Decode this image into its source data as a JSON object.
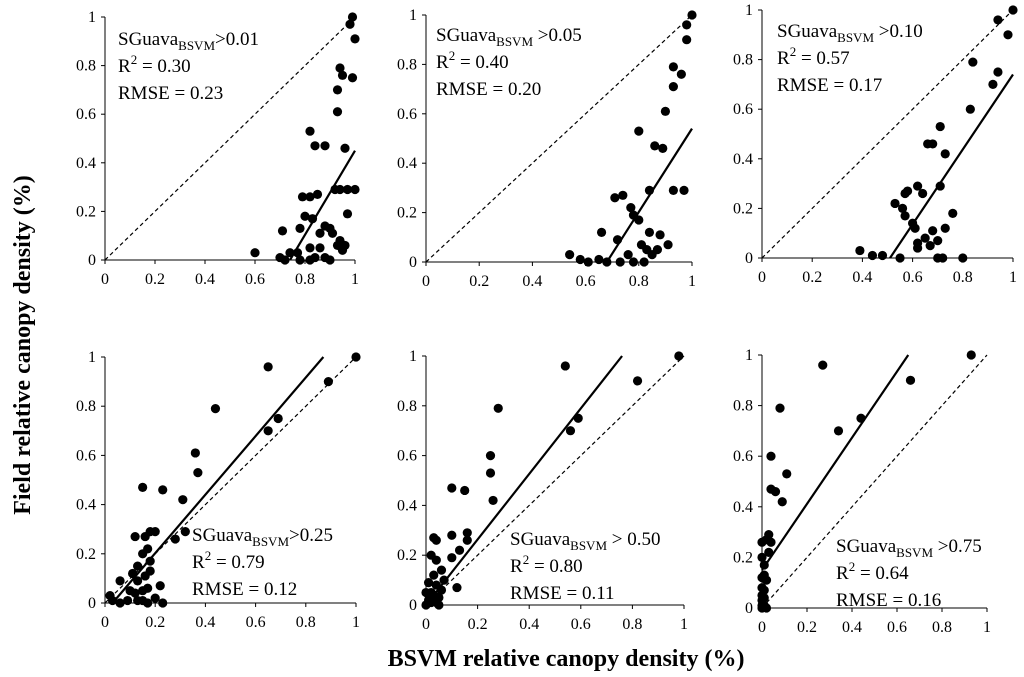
{
  "figure": {
    "ylabel": "Field relative canopy density (%)",
    "xlabel": "BSVM relative canopy density (%)"
  },
  "chart_data": [
    {
      "type": "scatter",
      "panel": "top-left",
      "xlim": [
        0,
        1
      ],
      "ylim": [
        0,
        1
      ],
      "xticks": [
        "0",
        "0.2",
        "0.4",
        "0.6",
        "0.8",
        "1"
      ],
      "yticks": [
        "0",
        "0.2",
        "0.4",
        "0.6",
        "0.8",
        "1"
      ],
      "annotation": {
        "name": "SGuava",
        "sub": "BSVM",
        "threshold": ">0.01",
        "r2_label": "R",
        "r2_exp": "2",
        "r2_value": " = 0.30",
        "rmse": "RMSE = 0.23"
      },
      "fit_line": {
        "x": [
          0.74,
          1.0
        ],
        "y": [
          0.0,
          0.45
        ]
      },
      "points": [
        [
          0.99,
          1.0
        ],
        [
          0.98,
          0.97
        ],
        [
          1.0,
          0.91
        ],
        [
          0.94,
          0.79
        ],
        [
          0.95,
          0.76
        ],
        [
          0.99,
          0.75
        ],
        [
          0.93,
          0.7
        ],
        [
          0.93,
          0.61
        ],
        [
          0.82,
          0.53
        ],
        [
          0.84,
          0.47
        ],
        [
          0.88,
          0.47
        ],
        [
          0.96,
          0.46
        ],
        [
          0.97,
          0.29
        ],
        [
          0.94,
          0.29
        ],
        [
          0.92,
          0.29
        ],
        [
          1.0,
          0.29
        ],
        [
          0.85,
          0.27
        ],
        [
          0.82,
          0.26
        ],
        [
          0.79,
          0.26
        ],
        [
          0.97,
          0.19
        ],
        [
          0.8,
          0.18
        ],
        [
          0.83,
          0.17
        ],
        [
          0.78,
          0.13
        ],
        [
          0.71,
          0.12
        ],
        [
          0.88,
          0.14
        ],
        [
          0.9,
          0.13
        ],
        [
          0.86,
          0.11
        ],
        [
          0.91,
          0.11
        ],
        [
          0.94,
          0.08
        ],
        [
          0.93,
          0.06
        ],
        [
          0.96,
          0.06
        ],
        [
          0.82,
          0.05
        ],
        [
          0.86,
          0.05
        ],
        [
          0.95,
          0.04
        ],
        [
          0.6,
          0.03
        ],
        [
          0.74,
          0.03
        ],
        [
          0.77,
          0.03
        ],
        [
          0.88,
          0.01
        ],
        [
          0.84,
          0.01
        ],
        [
          0.7,
          0.01
        ],
        [
          0.72,
          0.0
        ],
        [
          0.78,
          0.0
        ],
        [
          0.82,
          0.0
        ],
        [
          0.9,
          0.0
        ]
      ]
    },
    {
      "type": "scatter",
      "panel": "top-middle",
      "xlim": [
        0,
        1
      ],
      "ylim": [
        0,
        1
      ],
      "xticks": [
        "0",
        "0.2",
        "0.4",
        "0.6",
        "0.8",
        "1"
      ],
      "yticks": [
        "0",
        "0.2",
        "0.4",
        "0.6",
        "0.8",
        "1"
      ],
      "annotation": {
        "name": "SGuava",
        "sub": "BSVM",
        "threshold": " >0.05",
        "r2_label": "R",
        "r2_exp": "2",
        "r2_value": " = 0.40",
        "rmse": "RMSE = 0.20"
      },
      "fit_line": {
        "x": [
          0.68,
          1.0
        ],
        "y": [
          0.0,
          0.54
        ]
      },
      "points": [
        [
          1.0,
          1.0
        ],
        [
          0.98,
          0.96
        ],
        [
          0.98,
          0.9
        ],
        [
          0.93,
          0.79
        ],
        [
          0.96,
          0.76
        ],
        [
          0.93,
          0.71
        ],
        [
          0.9,
          0.61
        ],
        [
          0.8,
          0.53
        ],
        [
          0.86,
          0.47
        ],
        [
          0.89,
          0.46
        ],
        [
          0.97,
          0.29
        ],
        [
          0.93,
          0.29
        ],
        [
          0.84,
          0.29
        ],
        [
          0.74,
          0.27
        ],
        [
          0.71,
          0.26
        ],
        [
          0.77,
          0.22
        ],
        [
          0.78,
          0.19
        ],
        [
          0.8,
          0.17
        ],
        [
          0.66,
          0.12
        ],
        [
          0.84,
          0.12
        ],
        [
          0.88,
          0.11
        ],
        [
          0.72,
          0.09
        ],
        [
          0.81,
          0.07
        ],
        [
          0.91,
          0.07
        ],
        [
          0.87,
          0.05
        ],
        [
          0.83,
          0.05
        ],
        [
          0.85,
          0.03
        ],
        [
          0.54,
          0.03
        ],
        [
          0.76,
          0.03
        ],
        [
          0.58,
          0.01
        ],
        [
          0.65,
          0.01
        ],
        [
          0.68,
          0.0
        ],
        [
          0.61,
          0.0
        ],
        [
          0.73,
          0.0
        ],
        [
          0.78,
          0.0
        ],
        [
          0.82,
          0.0
        ]
      ]
    },
    {
      "type": "scatter",
      "panel": "top-right",
      "xlim": [
        0,
        1
      ],
      "ylim": [
        0,
        1
      ],
      "xticks": [
        "0",
        "0.2",
        "0.4",
        "0.6",
        "0.8",
        "1"
      ],
      "yticks": [
        "0",
        "0.2",
        "0.4",
        "0.6",
        "0.8",
        "1"
      ],
      "annotation": {
        "name": "SGuava",
        "sub": "BSVM",
        "threshold": " >0.10",
        "r2_label": "R",
        "r2_exp": "2",
        "r2_value": " = 0.57",
        "rmse": "RMSE = 0.17"
      },
      "fit_line": {
        "x": [
          0.51,
          1.0
        ],
        "y": [
          0.0,
          0.74
        ]
      },
      "points": [
        [
          1.0,
          1.0
        ],
        [
          0.94,
          0.96
        ],
        [
          0.98,
          0.9
        ],
        [
          0.84,
          0.79
        ],
        [
          0.94,
          0.75
        ],
        [
          0.92,
          0.7
        ],
        [
          0.83,
          0.6
        ],
        [
          0.71,
          0.53
        ],
        [
          0.66,
          0.46
        ],
        [
          0.68,
          0.46
        ],
        [
          0.73,
          0.42
        ],
        [
          0.71,
          0.29
        ],
        [
          0.62,
          0.29
        ],
        [
          0.58,
          0.27
        ],
        [
          0.57,
          0.26
        ],
        [
          0.64,
          0.26
        ],
        [
          0.53,
          0.22
        ],
        [
          0.56,
          0.2
        ],
        [
          0.57,
          0.17
        ],
        [
          0.76,
          0.18
        ],
        [
          0.6,
          0.14
        ],
        [
          0.61,
          0.12
        ],
        [
          0.68,
          0.11
        ],
        [
          0.73,
          0.12
        ],
        [
          0.65,
          0.08
        ],
        [
          0.62,
          0.06
        ],
        [
          0.7,
          0.07
        ],
        [
          0.62,
          0.04
        ],
        [
          0.67,
          0.05
        ],
        [
          0.39,
          0.03
        ],
        [
          0.44,
          0.01
        ],
        [
          0.48,
          0.01
        ],
        [
          0.55,
          0.0
        ],
        [
          0.7,
          0.0
        ],
        [
          0.72,
          0.0
        ],
        [
          0.8,
          0.0
        ]
      ]
    },
    {
      "type": "scatter",
      "panel": "bottom-left",
      "xlim": [
        0,
        1
      ],
      "ylim": [
        0,
        1
      ],
      "xticks": [
        "0",
        "0.2",
        "0.4",
        "0.6",
        "0.8",
        "1"
      ],
      "yticks": [
        "0",
        "0.2",
        "0.4",
        "0.6",
        "0.8",
        "1"
      ],
      "annotation": {
        "name": "SGuava",
        "sub": "BSVM",
        "threshold": ">0.25",
        "r2_label": "R",
        "r2_exp": "2",
        "r2_value": " = 0.79",
        "rmse": "RMSE = 0.12"
      },
      "fit_line": {
        "x": [
          0.03,
          0.87
        ],
        "y": [
          0.0,
          1.0
        ]
      },
      "points": [
        [
          1.0,
          1.0
        ],
        [
          0.65,
          0.96
        ],
        [
          0.89,
          0.9
        ],
        [
          0.44,
          0.79
        ],
        [
          0.69,
          0.75
        ],
        [
          0.65,
          0.7
        ],
        [
          0.36,
          0.61
        ],
        [
          0.37,
          0.53
        ],
        [
          0.15,
          0.47
        ],
        [
          0.23,
          0.46
        ],
        [
          0.31,
          0.42
        ],
        [
          0.18,
          0.29
        ],
        [
          0.2,
          0.29
        ],
        [
          0.32,
          0.29
        ],
        [
          0.12,
          0.27
        ],
        [
          0.16,
          0.27
        ],
        [
          0.28,
          0.26
        ],
        [
          0.17,
          0.22
        ],
        [
          0.15,
          0.2
        ],
        [
          0.18,
          0.17
        ],
        [
          0.13,
          0.15
        ],
        [
          0.18,
          0.13
        ],
        [
          0.11,
          0.12
        ],
        [
          0.16,
          0.11
        ],
        [
          0.13,
          0.09
        ],
        [
          0.06,
          0.09
        ],
        [
          0.22,
          0.07
        ],
        [
          0.17,
          0.06
        ],
        [
          0.1,
          0.05
        ],
        [
          0.15,
          0.05
        ],
        [
          0.12,
          0.04
        ],
        [
          0.02,
          0.03
        ],
        [
          0.2,
          0.02
        ],
        [
          0.09,
          0.01
        ],
        [
          0.03,
          0.01
        ],
        [
          0.13,
          0.01
        ],
        [
          0.15,
          0.01
        ],
        [
          0.17,
          0.0
        ],
        [
          0.23,
          0.0
        ],
        [
          0.06,
          0.0
        ]
      ]
    },
    {
      "type": "scatter",
      "panel": "bottom-middle",
      "xlim": [
        0,
        1
      ],
      "ylim": [
        0,
        1
      ],
      "xticks": [
        "0",
        "0.2",
        "0.4",
        "0.6",
        "0.8",
        "1"
      ],
      "yticks": [
        "0",
        "0.2",
        "0.4",
        "0.6",
        "0.8",
        "1"
      ],
      "annotation": {
        "name": "SGuava",
        "sub": "BSVM",
        "threshold": " > 0.50",
        "r2_label": "R",
        "r2_exp": "2",
        "r2_value": " = 0.80",
        "rmse": "RMSE = 0.11"
      },
      "fit_line": {
        "x": [
          0.0,
          0.76
        ],
        "y": [
          0.0,
          1.0
        ]
      },
      "points": [
        [
          0.98,
          1.0
        ],
        [
          0.54,
          0.96
        ],
        [
          0.82,
          0.9
        ],
        [
          0.28,
          0.79
        ],
        [
          0.59,
          0.75
        ],
        [
          0.56,
          0.7
        ],
        [
          0.25,
          0.6
        ],
        [
          0.25,
          0.53
        ],
        [
          0.1,
          0.47
        ],
        [
          0.15,
          0.46
        ],
        [
          0.26,
          0.42
        ],
        [
          0.16,
          0.29
        ],
        [
          0.1,
          0.28
        ],
        [
          0.03,
          0.27
        ],
        [
          0.04,
          0.26
        ],
        [
          0.16,
          0.26
        ],
        [
          0.13,
          0.22
        ],
        [
          0.02,
          0.2
        ],
        [
          0.1,
          0.19
        ],
        [
          0.04,
          0.18
        ],
        [
          0.06,
          0.14
        ],
        [
          0.03,
          0.12
        ],
        [
          0.07,
          0.1
        ],
        [
          0.01,
          0.09
        ],
        [
          0.04,
          0.08
        ],
        [
          0.12,
          0.07
        ],
        [
          0.06,
          0.06
        ],
        [
          0.0,
          0.05
        ],
        [
          0.02,
          0.05
        ],
        [
          0.03,
          0.04
        ],
        [
          0.05,
          0.03
        ],
        [
          0.01,
          0.02
        ],
        [
          0.02,
          0.01
        ],
        [
          0.04,
          0.01
        ],
        [
          0.0,
          0.0
        ],
        [
          0.05,
          0.0
        ]
      ]
    },
    {
      "type": "scatter",
      "panel": "bottom-right",
      "xlim": [
        0,
        1
      ],
      "ylim": [
        0,
        1
      ],
      "xticks": [
        "0",
        "0.2",
        "0.4",
        "0.6",
        "0.8",
        "1"
      ],
      "yticks": [
        "0",
        "0.2",
        "0.4",
        "0.6",
        "0.8",
        "1"
      ],
      "annotation": {
        "name": "SGuava",
        "sub": "BSVM",
        "threshold": " >0.75",
        "r2_label": "R",
        "r2_exp": "2",
        "r2_value": " = 0.64",
        "rmse": "RMSE = 0.16"
      },
      "fit_line": {
        "x": [
          0.0,
          0.65
        ],
        "y": [
          0.15,
          1.0
        ]
      },
      "points": [
        [
          0.93,
          1.0
        ],
        [
          0.27,
          0.96
        ],
        [
          0.66,
          0.9
        ],
        [
          0.08,
          0.79
        ],
        [
          0.44,
          0.75
        ],
        [
          0.34,
          0.7
        ],
        [
          0.04,
          0.6
        ],
        [
          0.11,
          0.53
        ],
        [
          0.04,
          0.47
        ],
        [
          0.06,
          0.46
        ],
        [
          0.09,
          0.42
        ],
        [
          0.03,
          0.29
        ],
        [
          0.02,
          0.27
        ],
        [
          0.0,
          0.26
        ],
        [
          0.04,
          0.26
        ],
        [
          0.03,
          0.22
        ],
        [
          0.0,
          0.2
        ],
        [
          0.01,
          0.17
        ],
        [
          0.01,
          0.13
        ],
        [
          0.0,
          0.12
        ],
        [
          0.02,
          0.11
        ],
        [
          0.0,
          0.08
        ],
        [
          0.01,
          0.07
        ],
        [
          0.0,
          0.05
        ],
        [
          0.01,
          0.04
        ],
        [
          0.0,
          0.03
        ],
        [
          0.01,
          0.01
        ],
        [
          0.0,
          0.01
        ],
        [
          0.0,
          0.0
        ],
        [
          0.02,
          0.0
        ]
      ]
    }
  ]
}
